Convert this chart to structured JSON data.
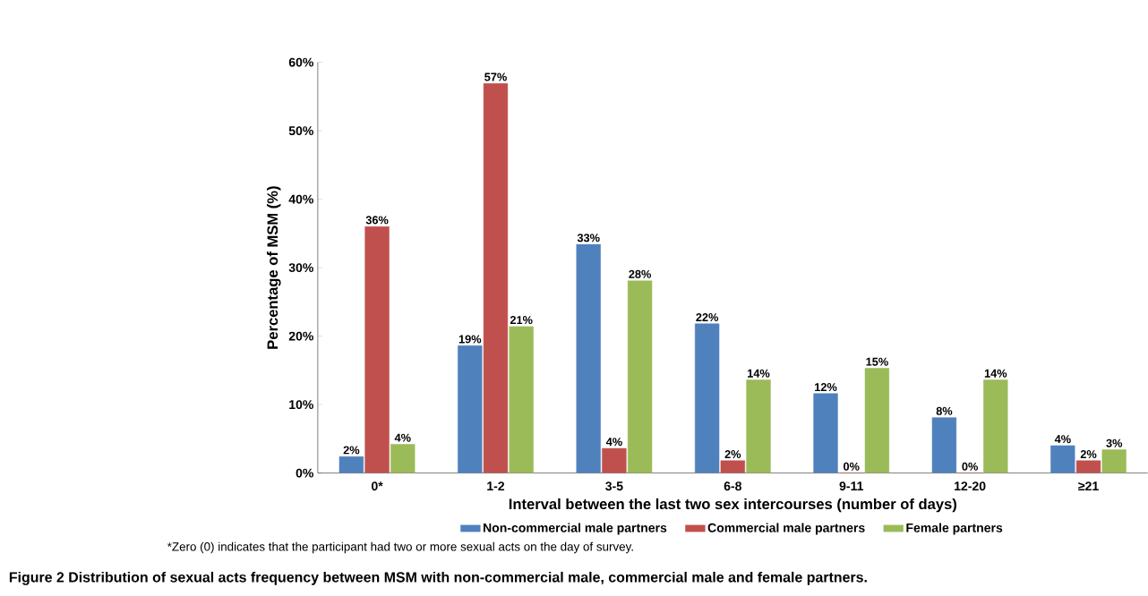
{
  "chart_data": {
    "type": "bar",
    "xlabel": "Interval between the last two sex intercourses (number of days)",
    "ylabel": "Percentage of MSM (%)",
    "categories": [
      "0*",
      "1-2",
      "3-5",
      "6-8",
      "9-11",
      "12-20",
      "≥21"
    ],
    "series": [
      {
        "name": "Non-commercial male partners",
        "color": "#4f81bd",
        "values": [
          2.4,
          18.6,
          33.4,
          21.8,
          11.6,
          8.1,
          4.0
        ],
        "value_labels": [
          "2%",
          "19%",
          "33%",
          "22%",
          "12%",
          "8%",
          "4%"
        ]
      },
      {
        "name": "Commercial male partners",
        "color": "#c0504d",
        "values": [
          36.0,
          56.9,
          3.6,
          1.8,
          0,
          0,
          1.8
        ],
        "value_labels": [
          "36%",
          "57%",
          "4%",
          "2%",
          "0%",
          "0%",
          "2%"
        ]
      },
      {
        "name": "Female partners",
        "color": "#9bbb59",
        "values": [
          4.2,
          21.4,
          28.1,
          13.6,
          15.3,
          13.6,
          3.4
        ],
        "value_labels": [
          "4%",
          "21%",
          "28%",
          "14%",
          "15%",
          "14%",
          "3%"
        ]
      }
    ],
    "ylim": [
      0,
      60
    ],
    "yticks": [
      {
        "value": 0,
        "label": "0%"
      },
      {
        "value": 10,
        "label": "10%"
      },
      {
        "value": 20,
        "label": "20%"
      },
      {
        "value": 30,
        "label": "30%"
      },
      {
        "value": 40,
        "label": "40%"
      },
      {
        "value": 50,
        "label": "50%"
      },
      {
        "value": 60,
        "label": "60%"
      }
    ],
    "legend": "bottom",
    "grid": false,
    "annotations": [
      "*Zero (0) indicates that the participant had two or more sexual acts on the day of survey.",
      "Figure 2 Distribution of sexual acts frequency between MSM with non-commercial male, commercial male and female partners."
    ]
  }
}
